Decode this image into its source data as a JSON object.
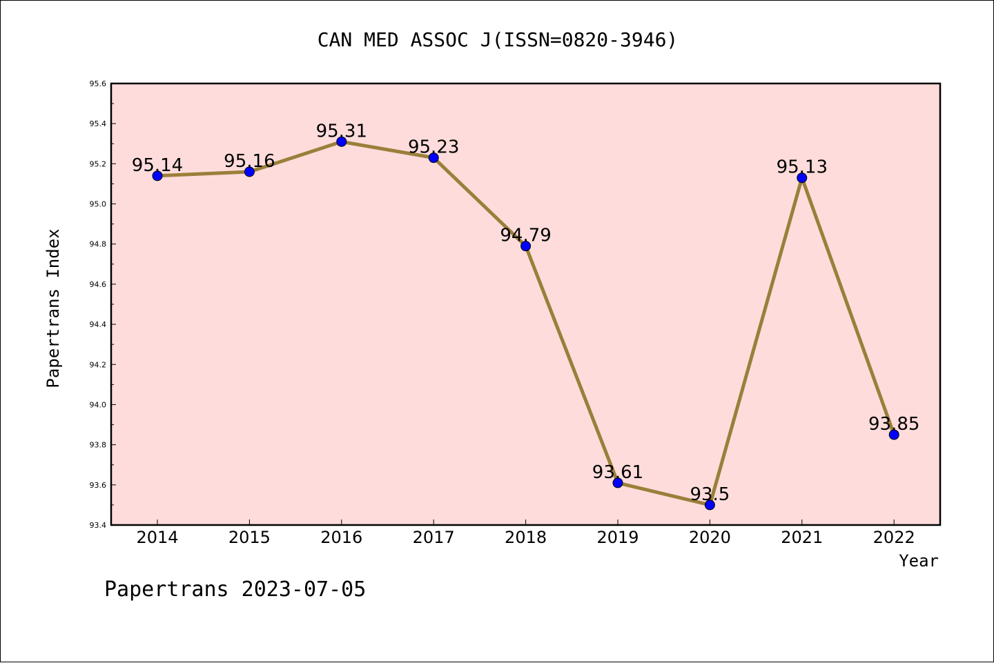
{
  "chart_data": {
    "type": "line",
    "title": "CAN MED ASSOC J(ISSN=0820-3946)",
    "xlabel": "Year",
    "ylabel": "Papertrans Index",
    "categories": [
      "2014",
      "2015",
      "2016",
      "2017",
      "2018",
      "2019",
      "2020",
      "2021",
      "2022"
    ],
    "series": [
      {
        "values": [
          95.14,
          95.16,
          95.31,
          95.23,
          94.79,
          93.61,
          93.5,
          95.13,
          93.85
        ]
      }
    ],
    "data_labels": [
      "95.14",
      "95.16",
      "95.31",
      "95.23",
      "94.79",
      "93.61",
      "93.5",
      "95.13",
      "93.85"
    ],
    "ylim": [
      93.4,
      95.6
    ],
    "y_ticks": [
      "93.4",
      "93.6",
      "93.8",
      "94.0",
      "94.2",
      "94.4",
      "94.6",
      "94.8",
      "95.0",
      "95.2",
      "95.4",
      "95.6"
    ],
    "grid": false,
    "colors": {
      "plot_background": "#fddcdb",
      "line": "#9a7f3a",
      "marker": "#0000ff"
    }
  },
  "footer": {
    "text": "Papertrans 2023-07-05"
  }
}
